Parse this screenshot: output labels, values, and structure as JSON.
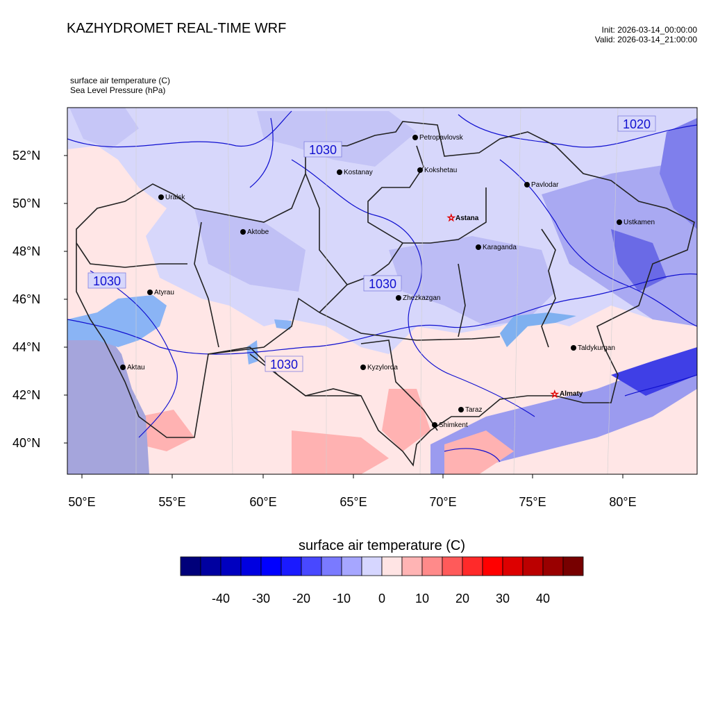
{
  "header": {
    "title": "KAZHYDROMET REAL-TIME WRF",
    "init": "Init: 2026-03-14_00:00:00",
    "valid": "Valid: 2026-03-14_21:00:00",
    "field1": "surface air temperature   (C)",
    "field2": "Sea Level Pressure   (hPa)"
  },
  "map": {
    "lat_labels": [
      "52°N",
      "50°N",
      "48°N",
      "46°N",
      "44°N",
      "42°N",
      "40°N"
    ],
    "lon_labels": [
      "50°E",
      "55°E",
      "60°E",
      "65°E",
      "70°E",
      "75°E",
      "80°E"
    ],
    "isobars": [
      "1030",
      "1030",
      "1030",
      "1030",
      "1020"
    ],
    "cities": [
      "Petropavlovsk",
      "Kostanay",
      "Kokshetau",
      "Uralsk",
      "Pavlodar",
      "Astana",
      "Aktobe",
      "Ustkamen",
      "Karaganda",
      "Atyrau",
      "Zhezkazgan",
      "Taldykurgan",
      "Aktau",
      "Kyzylorda",
      "Almaty",
      "Taraz",
      "Shimkent"
    ]
  },
  "colorbar": {
    "title": "surface air temperature  (C)",
    "ticks": [
      "-40",
      "-30",
      "-20",
      "-10",
      "0",
      "10",
      "20",
      "30",
      "40"
    ],
    "colors": [
      "#00007a",
      "#0000a0",
      "#0000c0",
      "#0000e0",
      "#0000ff",
      "#1a1aff",
      "#4848ff",
      "#7a7aff",
      "#a6a6ff",
      "#d6d6ff",
      "#ffe4e4",
      "#ffb4b4",
      "#ff8a8a",
      "#ff5a5a",
      "#ff2a2a",
      "#ff0000",
      "#dd0000",
      "#bb0000",
      "#990000",
      "#770000"
    ]
  }
}
